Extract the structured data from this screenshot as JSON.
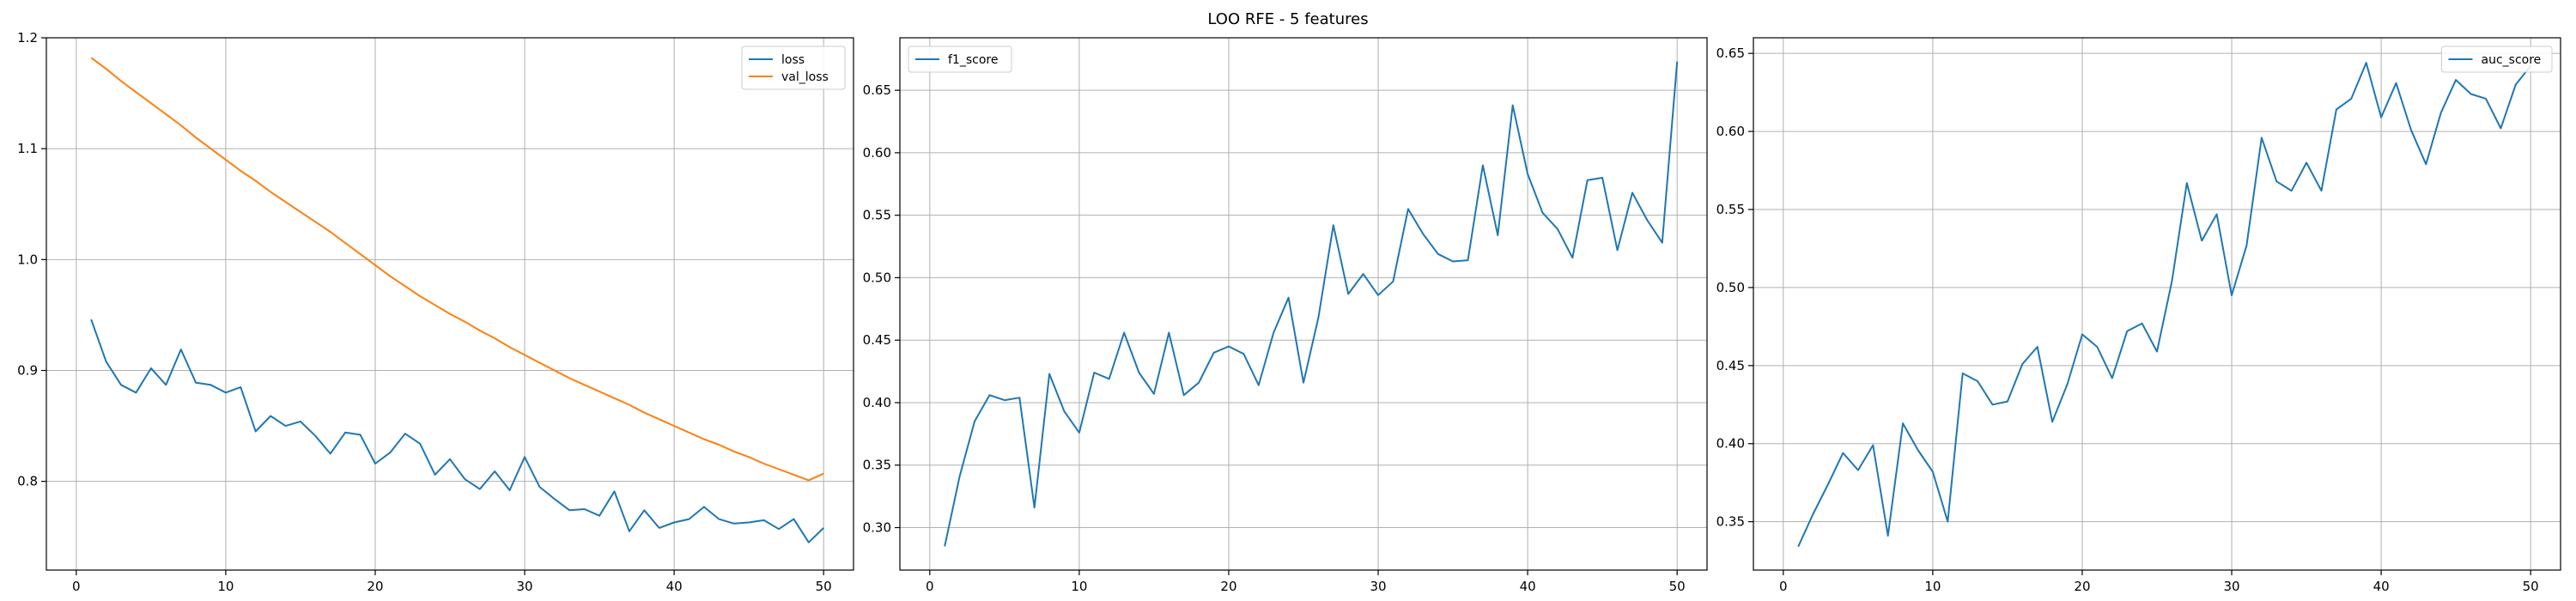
{
  "title": "LOO RFE - 5 features",
  "colors": {
    "blue": "#1f77b4",
    "orange": "#ff7f0e"
  },
  "chart_data": [
    {
      "type": "line",
      "x": [
        1,
        2,
        3,
        4,
        5,
        6,
        7,
        8,
        9,
        10,
        11,
        12,
        13,
        14,
        15,
        16,
        17,
        18,
        19,
        20,
        21,
        22,
        23,
        24,
        25,
        26,
        27,
        28,
        29,
        30,
        31,
        32,
        33,
        34,
        35,
        36,
        37,
        38,
        39,
        40,
        41,
        42,
        43,
        44,
        45,
        46,
        47,
        48,
        49,
        50
      ],
      "series": [
        {
          "name": "loss",
          "color": "#1f77b4",
          "values": [
            0.946,
            0.908,
            0.887,
            0.88,
            0.902,
            0.887,
            0.919,
            0.889,
            0.887,
            0.88,
            0.885,
            0.845,
            0.859,
            0.85,
            0.854,
            0.841,
            0.825,
            0.844,
            0.842,
            0.816,
            0.826,
            0.843,
            0.834,
            0.806,
            0.82,
            0.802,
            0.793,
            0.809,
            0.792,
            0.822,
            0.795,
            0.784,
            0.774,
            0.775,
            0.769,
            0.791,
            0.755,
            0.774,
            0.758,
            0.763,
            0.766,
            0.777,
            0.766,
            0.762,
            0.763,
            0.765,
            0.757,
            0.766,
            0.745,
            0.758
          ]
        },
        {
          "name": "val_loss",
          "color": "#ff7f0e",
          "values": [
            1.182,
            1.172,
            1.161,
            1.151,
            1.141,
            1.131,
            1.121,
            1.11,
            1.1,
            1.09,
            1.08,
            1.071,
            1.061,
            1.052,
            1.043,
            1.034,
            1.025,
            1.015,
            1.005,
            0.995,
            0.985,
            0.976,
            0.967,
            0.959,
            0.951,
            0.944,
            0.936,
            0.929,
            0.921,
            0.914,
            0.907,
            0.9,
            0.893,
            0.887,
            0.881,
            0.875,
            0.869,
            0.862,
            0.856,
            0.85,
            0.844,
            0.838,
            0.833,
            0.827,
            0.822,
            0.816,
            0.811,
            0.806,
            0.801,
            0.807
          ]
        }
      ],
      "xlim": [
        -2,
        52
      ],
      "ylim": [
        0.72,
        1.2
      ],
      "xticks": [
        0,
        10,
        20,
        30,
        40,
        50
      ],
      "yticks": [
        0.8,
        0.9,
        1.0,
        1.1,
        1.2
      ],
      "ytick_labels": [
        "0.8",
        "0.9",
        "1.0",
        "1.1",
        "1.2"
      ],
      "legend_location": "top-right"
    },
    {
      "type": "line",
      "x": [
        1,
        2,
        3,
        4,
        5,
        6,
        7,
        8,
        9,
        10,
        11,
        12,
        13,
        14,
        15,
        16,
        17,
        18,
        19,
        20,
        21,
        22,
        23,
        24,
        25,
        26,
        27,
        28,
        29,
        30,
        31,
        32,
        33,
        34,
        35,
        36,
        37,
        38,
        39,
        40,
        41,
        42,
        43,
        44,
        45,
        46,
        47,
        48,
        49,
        50
      ],
      "series": [
        {
          "name": "f1_score",
          "color": "#1f77b4",
          "values": [
            0.285,
            0.341,
            0.385,
            0.406,
            0.402,
            0.404,
            0.316,
            0.423,
            0.393,
            0.376,
            0.424,
            0.419,
            0.456,
            0.424,
            0.407,
            0.456,
            0.406,
            0.416,
            0.44,
            0.445,
            0.439,
            0.414,
            0.456,
            0.484,
            0.416,
            0.468,
            0.542,
            0.487,
            0.503,
            0.486,
            0.497,
            0.555,
            0.535,
            0.519,
            0.513,
            0.514,
            0.59,
            0.534,
            0.638,
            0.583,
            0.552,
            0.539,
            0.516,
            0.578,
            0.58,
            0.522,
            0.568,
            0.546,
            0.528,
            0.673
          ]
        }
      ],
      "xlim": [
        -2,
        52
      ],
      "ylim": [
        0.266,
        0.692
      ],
      "xticks": [
        0,
        10,
        20,
        30,
        40,
        50
      ],
      "yticks": [
        0.3,
        0.35,
        0.4,
        0.45,
        0.5,
        0.55,
        0.6,
        0.65
      ],
      "ytick_labels": [
        "0.30",
        "0.35",
        "0.40",
        "0.45",
        "0.50",
        "0.55",
        "0.60",
        "0.65"
      ],
      "legend_location": "top-left"
    },
    {
      "type": "line",
      "x": [
        1,
        2,
        3,
        4,
        5,
        6,
        7,
        8,
        9,
        10,
        11,
        12,
        13,
        14,
        15,
        16,
        17,
        18,
        19,
        20,
        21,
        22,
        23,
        24,
        25,
        26,
        27,
        28,
        29,
        30,
        31,
        32,
        33,
        34,
        35,
        36,
        37,
        38,
        39,
        40,
        41,
        42,
        43,
        44,
        45,
        46,
        47,
        48,
        49,
        50
      ],
      "series": [
        {
          "name": "auc_score",
          "color": "#1f77b4",
          "values": [
            0.334,
            0.355,
            0.374,
            0.394,
            0.383,
            0.399,
            0.341,
            0.413,
            0.396,
            0.382,
            0.35,
            0.445,
            0.44,
            0.425,
            0.427,
            0.451,
            0.462,
            0.414,
            0.438,
            0.47,
            0.462,
            0.442,
            0.472,
            0.477,
            0.459,
            0.504,
            0.567,
            0.53,
            0.547,
            0.495,
            0.527,
            0.596,
            0.568,
            0.562,
            0.58,
            0.562,
            0.614,
            0.621,
            0.644,
            0.609,
            0.631,
            0.601,
            0.579,
            0.612,
            0.633,
            0.624,
            0.621,
            0.602,
            0.63,
            0.642
          ]
        }
      ],
      "xlim": [
        -2,
        52
      ],
      "ylim": [
        0.319,
        0.66
      ],
      "xticks": [
        0,
        10,
        20,
        30,
        40,
        50
      ],
      "yticks": [
        0.35,
        0.4,
        0.45,
        0.5,
        0.55,
        0.6,
        0.65
      ],
      "ytick_labels": [
        "0.35",
        "0.40",
        "0.45",
        "0.50",
        "0.55",
        "0.60",
        "0.65"
      ],
      "legend_location": "top-right"
    }
  ]
}
